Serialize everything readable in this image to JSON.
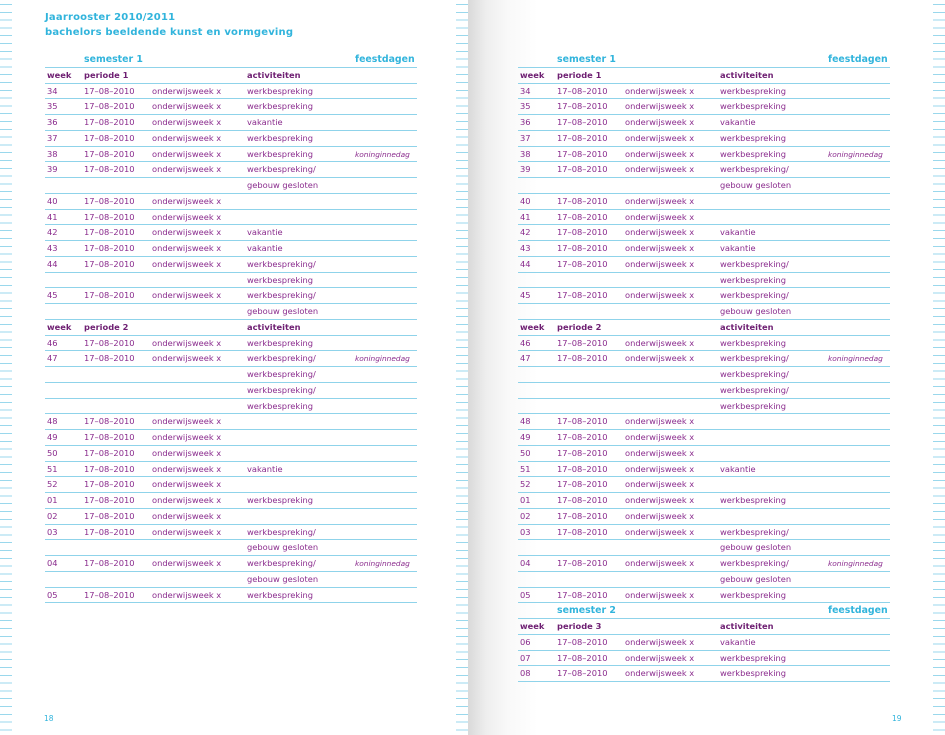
{
  "header": {
    "title": "Jaarrooster 2010/2011",
    "subtitle": "bachelors beeldende kunst en vormgeving"
  },
  "pages": [
    {
      "page_number": "18",
      "rows": [
        {
          "kind": "sem",
          "title": "semester 1",
          "holidays": "feestdagen"
        },
        {
          "kind": "hdr",
          "week": "week",
          "period": "periode 1",
          "activities": "activiteiten"
        },
        {
          "kind": "data",
          "week": "34",
          "date": "17–08–2010",
          "type": "onderwijsweek x",
          "activity": "werkbespreking",
          "holiday": ""
        },
        {
          "kind": "data",
          "week": "35",
          "date": "17–08–2010",
          "type": "onderwijsweek x",
          "activity": "werkbespreking",
          "holiday": ""
        },
        {
          "kind": "data",
          "week": "36",
          "date": "17–08–2010",
          "type": "onderwijsweek x",
          "activity": "vakantie",
          "holiday": ""
        },
        {
          "kind": "data",
          "week": "37",
          "date": "17–08–2010",
          "type": "onderwijsweek x",
          "activity": "werkbespreking",
          "holiday": ""
        },
        {
          "kind": "data",
          "week": "38",
          "date": "17–08–2010",
          "type": "onderwijsweek x",
          "activity": "werkbespreking",
          "holiday": "koninginnedag"
        },
        {
          "kind": "data",
          "week": "39",
          "date": "17–08–2010",
          "type": "onderwijsweek x",
          "activity": "werkbespreking/",
          "holiday": ""
        },
        {
          "kind": "data",
          "week": "",
          "date": "",
          "type": "",
          "activity": "gebouw gesloten",
          "holiday": ""
        },
        {
          "kind": "data",
          "week": "40",
          "date": "17–08–2010",
          "type": "onderwijsweek x",
          "activity": "",
          "holiday": ""
        },
        {
          "kind": "data",
          "week": "41",
          "date": "17–08–2010",
          "type": "onderwijsweek x",
          "activity": "",
          "holiday": ""
        },
        {
          "kind": "data",
          "week": "42",
          "date": "17–08–2010",
          "type": "onderwijsweek x",
          "activity": "vakantie",
          "holiday": ""
        },
        {
          "kind": "data",
          "week": "43",
          "date": "17–08–2010",
          "type": "onderwijsweek x",
          "activity": "vakantie",
          "holiday": ""
        },
        {
          "kind": "data",
          "week": "44",
          "date": "17–08–2010",
          "type": "onderwijsweek x",
          "activity": "werkbespreking/",
          "holiday": ""
        },
        {
          "kind": "data",
          "week": "",
          "date": "",
          "type": "",
          "activity": "werkbespreking",
          "holiday": ""
        },
        {
          "kind": "data",
          "week": "45",
          "date": "17–08–2010",
          "type": "onderwijsweek x",
          "activity": "werkbespreking/",
          "holiday": ""
        },
        {
          "kind": "data",
          "week": "",
          "date": "",
          "type": "",
          "activity": "gebouw gesloten",
          "holiday": ""
        },
        {
          "kind": "hdr",
          "week": "week",
          "period": "periode 2",
          "activities": "activiteiten"
        },
        {
          "kind": "data",
          "week": "46",
          "date": "17–08–2010",
          "type": "onderwijsweek x",
          "activity": "werkbespreking",
          "holiday": ""
        },
        {
          "kind": "data",
          "week": "47",
          "date": "17–08–2010",
          "type": "onderwijsweek x",
          "activity": "werkbespreking/",
          "holiday": "koninginnedag"
        },
        {
          "kind": "data",
          "week": "",
          "date": "",
          "type": "",
          "activity": "werkbespreking/",
          "holiday": ""
        },
        {
          "kind": "data",
          "week": "",
          "date": "",
          "type": "",
          "activity": "werkbespreking/",
          "holiday": ""
        },
        {
          "kind": "data",
          "week": "",
          "date": "",
          "type": "",
          "activity": "werkbespreking",
          "holiday": ""
        },
        {
          "kind": "data",
          "week": "48",
          "date": "17–08–2010",
          "type": "onderwijsweek x",
          "activity": "",
          "holiday": ""
        },
        {
          "kind": "data",
          "week": "49",
          "date": "17–08–2010",
          "type": "onderwijsweek x",
          "activity": "",
          "holiday": ""
        },
        {
          "kind": "data",
          "week": "50",
          "date": "17–08–2010",
          "type": "onderwijsweek x",
          "activity": "",
          "holiday": ""
        },
        {
          "kind": "data",
          "week": "51",
          "date": "17–08–2010",
          "type": "onderwijsweek x",
          "activity": "vakantie",
          "holiday": ""
        },
        {
          "kind": "data",
          "week": "52",
          "date": "17–08–2010",
          "type": "onderwijsweek x",
          "activity": "",
          "holiday": ""
        },
        {
          "kind": "data",
          "week": "01",
          "date": "17–08–2010",
          "type": "onderwijsweek x",
          "activity": "werkbespreking",
          "holiday": ""
        },
        {
          "kind": "data",
          "week": "02",
          "date": "17–08–2010",
          "type": "onderwijsweek x",
          "activity": "",
          "holiday": ""
        },
        {
          "kind": "data",
          "week": "03",
          "date": "17–08–2010",
          "type": "onderwijsweek x",
          "activity": "werkbespreking/",
          "holiday": ""
        },
        {
          "kind": "data",
          "week": "",
          "date": "",
          "type": "",
          "activity": "gebouw gesloten",
          "holiday": ""
        },
        {
          "kind": "data",
          "week": "04",
          "date": "17–08–2010",
          "type": "onderwijsweek x",
          "activity": "werkbespreking/",
          "holiday": "koninginnedag"
        },
        {
          "kind": "data",
          "week": "",
          "date": "",
          "type": "",
          "activity": "gebouw gesloten",
          "holiday": ""
        },
        {
          "kind": "data",
          "week": "05",
          "date": "17–08–2010",
          "type": "onderwijsweek x",
          "activity": "werkbespreking",
          "holiday": ""
        }
      ]
    },
    {
      "page_number": "19",
      "rows": [
        {
          "kind": "sem",
          "title": "semester 1",
          "holidays": "feestdagen"
        },
        {
          "kind": "hdr",
          "week": "week",
          "period": "periode 1",
          "activities": "activiteiten"
        },
        {
          "kind": "data",
          "week": "34",
          "date": "17–08–2010",
          "type": "onderwijsweek x",
          "activity": "werkbespreking",
          "holiday": ""
        },
        {
          "kind": "data",
          "week": "35",
          "date": "17–08–2010",
          "type": "onderwijsweek x",
          "activity": "werkbespreking",
          "holiday": ""
        },
        {
          "kind": "data",
          "week": "36",
          "date": "17–08–2010",
          "type": "onderwijsweek x",
          "activity": "vakantie",
          "holiday": ""
        },
        {
          "kind": "data",
          "week": "37",
          "date": "17–08–2010",
          "type": "onderwijsweek x",
          "activity": "werkbespreking",
          "holiday": ""
        },
        {
          "kind": "data",
          "week": "38",
          "date": "17–08–2010",
          "type": "onderwijsweek x",
          "activity": "werkbespreking",
          "holiday": "koninginnedag"
        },
        {
          "kind": "data",
          "week": "39",
          "date": "17–08–2010",
          "type": "onderwijsweek x",
          "activity": "werkbespreking/",
          "holiday": ""
        },
        {
          "kind": "data",
          "week": "",
          "date": "",
          "type": "",
          "activity": "gebouw gesloten",
          "holiday": ""
        },
        {
          "kind": "data",
          "week": "40",
          "date": "17–08–2010",
          "type": "onderwijsweek x",
          "activity": "",
          "holiday": ""
        },
        {
          "kind": "data",
          "week": "41",
          "date": "17–08–2010",
          "type": "onderwijsweek x",
          "activity": "",
          "holiday": ""
        },
        {
          "kind": "data",
          "week": "42",
          "date": "17–08–2010",
          "type": "onderwijsweek x",
          "activity": "vakantie",
          "holiday": ""
        },
        {
          "kind": "data",
          "week": "43",
          "date": "17–08–2010",
          "type": "onderwijsweek x",
          "activity": "vakantie",
          "holiday": ""
        },
        {
          "kind": "data",
          "week": "44",
          "date": "17–08–2010",
          "type": "onderwijsweek x",
          "activity": "werkbespreking/",
          "holiday": ""
        },
        {
          "kind": "data",
          "week": "",
          "date": "",
          "type": "",
          "activity": "werkbespreking",
          "holiday": ""
        },
        {
          "kind": "data",
          "week": "45",
          "date": "17–08–2010",
          "type": "onderwijsweek x",
          "activity": "werkbespreking/",
          "holiday": ""
        },
        {
          "kind": "data",
          "week": "",
          "date": "",
          "type": "",
          "activity": "gebouw gesloten",
          "holiday": ""
        },
        {
          "kind": "hdr",
          "week": "week",
          "period": "periode 2",
          "activities": "activiteiten"
        },
        {
          "kind": "data",
          "week": "46",
          "date": "17–08–2010",
          "type": "onderwijsweek x",
          "activity": "werkbespreking",
          "holiday": ""
        },
        {
          "kind": "data",
          "week": "47",
          "date": "17–08–2010",
          "type": "onderwijsweek x",
          "activity": "werkbespreking/",
          "holiday": "koninginnedag"
        },
        {
          "kind": "data",
          "week": "",
          "date": "",
          "type": "",
          "activity": "werkbespreking/",
          "holiday": ""
        },
        {
          "kind": "data",
          "week": "",
          "date": "",
          "type": "",
          "activity": "werkbespreking/",
          "holiday": ""
        },
        {
          "kind": "data",
          "week": "",
          "date": "",
          "type": "",
          "activity": "werkbespreking",
          "holiday": ""
        },
        {
          "kind": "data",
          "week": "48",
          "date": "17–08–2010",
          "type": "onderwijsweek x",
          "activity": "",
          "holiday": ""
        },
        {
          "kind": "data",
          "week": "49",
          "date": "17–08–2010",
          "type": "onderwijsweek x",
          "activity": "",
          "holiday": ""
        },
        {
          "kind": "data",
          "week": "50",
          "date": "17–08–2010",
          "type": "onderwijsweek x",
          "activity": "",
          "holiday": ""
        },
        {
          "kind": "data",
          "week": "51",
          "date": "17–08–2010",
          "type": "onderwijsweek x",
          "activity": "vakantie",
          "holiday": ""
        },
        {
          "kind": "data",
          "week": "52",
          "date": "17–08–2010",
          "type": "onderwijsweek x",
          "activity": "",
          "holiday": ""
        },
        {
          "kind": "data",
          "week": "01",
          "date": "17–08–2010",
          "type": "onderwijsweek x",
          "activity": "werkbespreking",
          "holiday": ""
        },
        {
          "kind": "data",
          "week": "02",
          "date": "17–08–2010",
          "type": "onderwijsweek x",
          "activity": "",
          "holiday": ""
        },
        {
          "kind": "data",
          "week": "03",
          "date": "17–08–2010",
          "type": "onderwijsweek x",
          "activity": "werkbespreking/",
          "holiday": ""
        },
        {
          "kind": "data",
          "week": "",
          "date": "",
          "type": "",
          "activity": "gebouw gesloten",
          "holiday": ""
        },
        {
          "kind": "data",
          "week": "04",
          "date": "17–08–2010",
          "type": "onderwijsweek x",
          "activity": "werkbespreking/",
          "holiday": "koninginnedag"
        },
        {
          "kind": "data",
          "week": "",
          "date": "",
          "type": "",
          "activity": "gebouw gesloten",
          "holiday": ""
        },
        {
          "kind": "data",
          "week": "05",
          "date": "17–08–2010",
          "type": "onderwijsweek x",
          "activity": "werkbespreking",
          "holiday": ""
        },
        {
          "kind": "sem",
          "title": "semester 2",
          "holidays": "feestdagen"
        },
        {
          "kind": "hdr",
          "week": "week",
          "period": "periode 3",
          "activities": "activiteiten"
        },
        {
          "kind": "data",
          "week": "06",
          "date": "17–08–2010",
          "type": "onderwijsweek x",
          "activity": "vakantie",
          "holiday": ""
        },
        {
          "kind": "data",
          "week": "07",
          "date": "17–08–2010",
          "type": "onderwijsweek x",
          "activity": "werkbespreking",
          "holiday": ""
        },
        {
          "kind": "data",
          "week": "08",
          "date": "17–08–2010",
          "type": "onderwijsweek x",
          "activity": "werkbespreking",
          "holiday": ""
        }
      ]
    }
  ]
}
